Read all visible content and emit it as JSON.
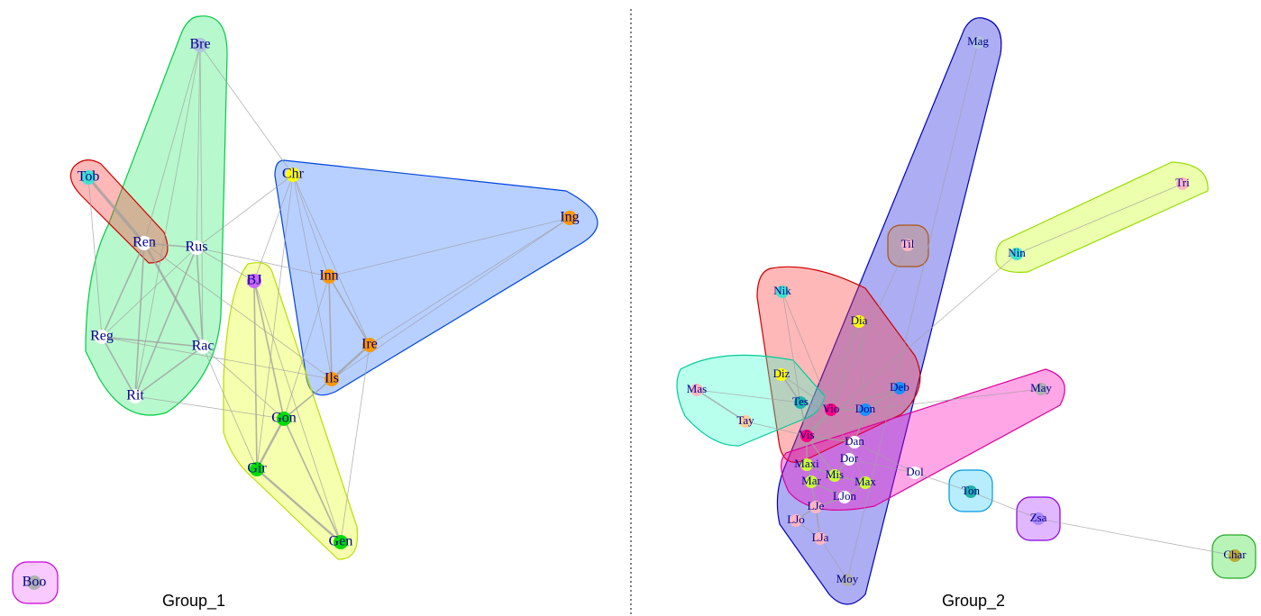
{
  "panels": [
    {
      "caption": "Group_1",
      "nodes": [
        "Bre",
        "Tob",
        "Ren",
        "Rus",
        "Reg",
        "Rac",
        "Rit",
        "Chr",
        "Ing",
        "BJ",
        "Inn",
        "Ire",
        "Ils",
        "Gon",
        "Gir",
        "Gen",
        "Boo"
      ]
    },
    {
      "caption": "Group_2",
      "nodes": [
        "Mag",
        "Tri",
        "Til",
        "Nin",
        "Nik",
        "Dia",
        "Diz",
        "Mas",
        "Tes",
        "Deb",
        "May",
        "Vio",
        "Don",
        "Tay",
        "Vis",
        "Dan",
        "Dor",
        "Maxi",
        "Dol",
        "Mis",
        "Mar",
        "Max",
        "LJon",
        "Ton",
        "LJe",
        "Zsa",
        "LJo",
        "LJa",
        "Char",
        "Moy"
      ]
    }
  ]
}
